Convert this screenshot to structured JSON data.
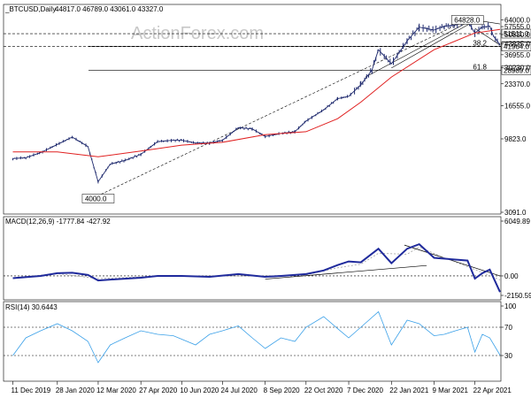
{
  "chart_data": [
    {
      "type": "candlestick",
      "panel": "price",
      "header": {
        "symbol": "_BTCUSD,Daily",
        "ohlc": "44817.0  46789.0  43061.0  43327.0"
      },
      "watermark": "ActionForex.com",
      "scale": "log",
      "ylim": [
        3091,
        70000
      ],
      "y_ticks": [
        "64000.0",
        "57555.0",
        "50830.0",
        "43835.0",
        "36955.0",
        "30230.0",
        "23370.0",
        "16555.0",
        "9823.0",
        "3091.0"
      ],
      "x_ticks": [
        "11 Dec 2019",
        "28 Jan 2020",
        "12 Mar 2020",
        "27 Apr 2020",
        "10 Jun 2020",
        "24 Jul 2020",
        "8 Sep 2020",
        "22 Oct 2020",
        "7 Dec 2020",
        "22 Jan 2021",
        "9 Mar 2021",
        "22 Apr 2021"
      ],
      "price_series": {
        "x": [
          "2019-12-11",
          "2019-12-25",
          "2020-01-10",
          "2020-01-28",
          "2020-02-13",
          "2020-03-01",
          "2020-03-12",
          "2020-03-25",
          "2020-04-10",
          "2020-04-27",
          "2020-05-15",
          "2020-06-01",
          "2020-06-10",
          "2020-06-25",
          "2020-07-10",
          "2020-07-24",
          "2020-08-10",
          "2020-08-25",
          "2020-09-08",
          "2020-09-25",
          "2020-10-10",
          "2020-10-22",
          "2020-11-10",
          "2020-11-25",
          "2020-12-07",
          "2020-12-20",
          "2021-01-01",
          "2021-01-08",
          "2021-01-22",
          "2021-02-08",
          "2021-02-21",
          "2021-03-09",
          "2021-03-20",
          "2021-04-01",
          "2021-04-14",
          "2021-04-22",
          "2021-04-30",
          "2021-05-08",
          "2021-05-12",
          "2021-05-19"
        ],
        "close": [
          7200,
          7300,
          7900,
          9000,
          10100,
          8700,
          5000,
          6600,
          7000,
          7700,
          9400,
          9600,
          9600,
          9200,
          9200,
          9600,
          11700,
          11500,
          10200,
          10700,
          11000,
          13000,
          15500,
          18500,
          19200,
          23000,
          29000,
          40000,
          32000,
          46000,
          57000,
          54500,
          58000,
          59000,
          63000,
          52000,
          57000,
          58000,
          49500,
          43327
        ]
      },
      "ma_line": {
        "x": [
          "2019-12-11",
          "2020-01-28",
          "2020-03-12",
          "2020-04-27",
          "2020-06-10",
          "2020-07-24",
          "2020-09-08",
          "2020-10-22",
          "2020-11-25",
          "2020-12-20",
          "2021-01-22",
          "2021-03-09",
          "2021-04-22",
          "2021-05-19"
        ],
        "values": [
          8000,
          8000,
          7400,
          8100,
          8900,
          9300,
          10500,
          11000,
          13500,
          17500,
          26000,
          40000,
          52000,
          55000
        ]
      },
      "horizontal_levels": [
        {
          "value": 51511,
          "label": "51511.0",
          "style": "dashed"
        },
        {
          "value": 42200,
          "label": "42200.0",
          "style": "dashed"
        },
        {
          "value": 41964,
          "label": "41964.0",
          "style": "solid",
          "prefix": "38.2"
        },
        {
          "value": 28989,
          "label": "28989.0",
          "style": "solid",
          "prefix": "61.8"
        }
      ],
      "annotations": [
        {
          "label": "64828.0",
          "x": "2021-04-14",
          "y": 64828
        },
        {
          "label": "4000.0",
          "x": "2020-03-12",
          "y": 4000
        }
      ]
    },
    {
      "type": "line",
      "panel": "macd",
      "header": "MACD(12,26,9) -1777.84 -427.92",
      "ylim": [
        -2150.59,
        6049.89
      ],
      "y_ticks": [
        "6049.89",
        "0.00",
        "-2150.59"
      ],
      "series": [
        {
          "kind": "macd",
          "x": [
            "2019-12-11",
            "2020-01-10",
            "2020-01-28",
            "2020-02-13",
            "2020-03-01",
            "2020-03-12",
            "2020-03-25",
            "2020-04-27",
            "2020-05-15",
            "2020-06-10",
            "2020-07-10",
            "2020-08-10",
            "2020-09-08",
            "2020-09-25",
            "2020-10-22",
            "2020-11-10",
            "2020-11-25",
            "2020-12-07",
            "2020-12-20",
            "2021-01-08",
            "2021-01-22",
            "2021-02-08",
            "2021-02-21",
            "2021-03-09",
            "2021-04-01",
            "2021-04-14",
            "2021-04-22",
            "2021-04-30",
            "2021-05-08",
            "2021-05-19"
          ],
          "values": [
            -250,
            0,
            300,
            350,
            100,
            -500,
            -400,
            -200,
            0,
            0,
            -100,
            200,
            -100,
            0,
            200,
            600,
            1200,
            1600,
            1500,
            3000,
            1400,
            3000,
            3500,
            2000,
            1800,
            1700,
            -300,
            300,
            700,
            -1777
          ]
        },
        {
          "kind": "signal",
          "x": [
            "2019-12-11",
            "2020-01-28",
            "2020-03-12",
            "2020-04-27",
            "2020-06-10",
            "2020-07-24",
            "2020-09-08",
            "2020-10-22",
            "2020-11-25",
            "2020-12-20",
            "2021-01-08",
            "2021-02-08",
            "2021-02-21",
            "2021-03-20",
            "2021-04-22",
            "2021-05-19"
          ],
          "values": [
            -200,
            250,
            -300,
            -100,
            0,
            0,
            0,
            100,
            900,
            1300,
            2500,
            2400,
            3200,
            2000,
            700,
            -428
          ]
        }
      ],
      "trendlines": [
        {
          "from": {
            "x": "2020-09-08",
            "y": -350
          },
          "to": {
            "x": "2021-03-01",
            "y": 1150
          }
        },
        {
          "from": {
            "x": "2021-02-05",
            "y": 3400
          },
          "to": {
            "x": "2021-05-19",
            "y": 0
          }
        }
      ]
    },
    {
      "type": "line",
      "panel": "rsi",
      "header": "RSI(14) 30.6443",
      "ylim": [
        0,
        100
      ],
      "y_ticks": [
        "100",
        "70",
        "30"
      ],
      "levels": [
        70,
        30
      ],
      "series": [
        {
          "kind": "rsi",
          "x": [
            "2019-12-11",
            "2019-12-25",
            "2020-01-10",
            "2020-01-28",
            "2020-02-13",
            "2020-03-01",
            "2020-03-12",
            "2020-03-25",
            "2020-04-10",
            "2020-04-27",
            "2020-05-15",
            "2020-06-01",
            "2020-06-25",
            "2020-07-10",
            "2020-07-24",
            "2020-08-10",
            "2020-08-25",
            "2020-09-08",
            "2020-09-25",
            "2020-10-10",
            "2020-10-22",
            "2020-11-10",
            "2020-11-25",
            "2020-12-07",
            "2020-12-20",
            "2021-01-08",
            "2021-01-22",
            "2021-02-08",
            "2021-02-21",
            "2021-03-09",
            "2021-03-20",
            "2021-04-01",
            "2021-04-14",
            "2021-04-22",
            "2021-04-30",
            "2021-05-08",
            "2021-05-19"
          ],
          "values": [
            30,
            55,
            65,
            75,
            65,
            50,
            20,
            45,
            55,
            65,
            60,
            58,
            45,
            60,
            65,
            72,
            55,
            40,
            55,
            50,
            70,
            85,
            68,
            55,
            70,
            92,
            45,
            80,
            75,
            58,
            60,
            65,
            70,
            35,
            60,
            55,
            30.6443
          ]
        }
      ]
    }
  ]
}
